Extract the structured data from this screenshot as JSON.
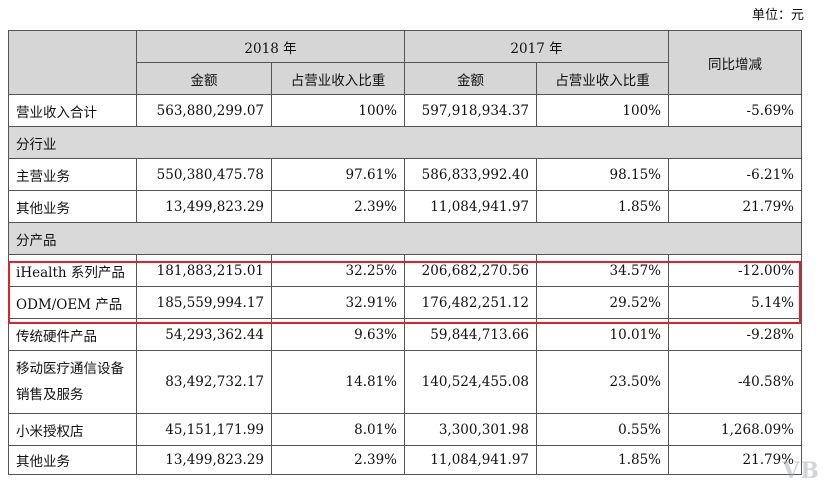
{
  "unit_label": "单位：元",
  "header": {
    "year1": "2018 年",
    "year2": "2017 年",
    "yoy": "同比增减",
    "amount": "金额",
    "ratio": "占营业收入比重"
  },
  "total": {
    "label": "营业收入合计",
    "a18": "563,880,299.07",
    "r18": "100%",
    "a17": "597,918,934.37",
    "r17": "100%",
    "yoy": "-5.69%"
  },
  "section_industry": "分行业",
  "industry": [
    {
      "label": "主营业务",
      "a18": "550,380,475.78",
      "r18": "97.61%",
      "a17": "586,833,992.40",
      "r17": "98.15%",
      "yoy": "-6.21%"
    },
    {
      "label": "其他业务",
      "a18": "13,499,823.29",
      "r18": "2.39%",
      "a17": "11,084,941.97",
      "r17": "1.85%",
      "yoy": "21.79%"
    }
  ],
  "section_product": "分产品",
  "product": [
    {
      "label": "iHealth 系列产品",
      "a18": "181,883,215.01",
      "r18": "32.25%",
      "a17": "206,682,270.56",
      "r17": "34.57%",
      "yoy": "-12.00%"
    },
    {
      "label": "ODM/OEM 产品",
      "a18": "185,559,994.17",
      "r18": "32.91%",
      "a17": "176,482,251.12",
      "r17": "29.52%",
      "yoy": "5.14%"
    },
    {
      "label": "传统硬件产品",
      "a18": "54,293,362.44",
      "r18": "9.63%",
      "a17": "59,844,713.66",
      "r17": "10.01%",
      "yoy": "-9.28%"
    },
    {
      "label": "移动医疗通信设备销售及服务",
      "a18": "83,492,732.17",
      "r18": "14.81%",
      "a17": "140,524,455.08",
      "r17": "23.50%",
      "yoy": "-40.58%"
    },
    {
      "label": "小米授权店",
      "a18": "45,151,171.99",
      "r18": "8.01%",
      "a17": "3,300,301.98",
      "r17": "0.55%",
      "yoy": "1,268.09%"
    },
    {
      "label": "其他业务",
      "a18": "13,499,823.29",
      "r18": "2.39%",
      "a17": "11,084,941.97",
      "r17": "1.85%",
      "yoy": "21.79%"
    }
  ],
  "watermark": "VB"
}
